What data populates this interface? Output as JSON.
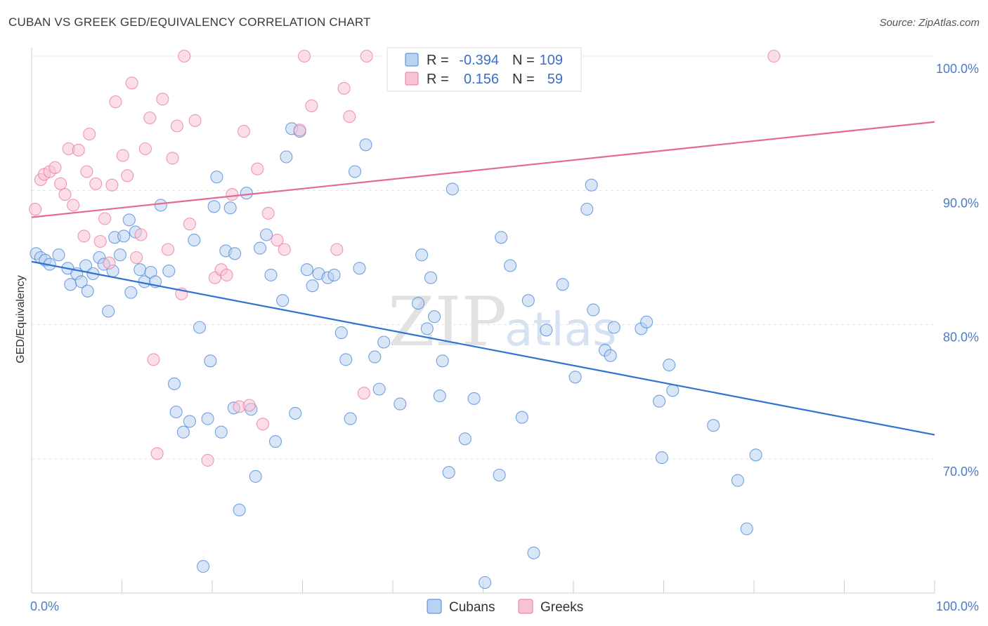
{
  "header": {
    "title": "CUBAN VS GREEK GED/EQUIVALENCY CORRELATION CHART",
    "source": "Source: ZipAtlas.com"
  },
  "watermark": {
    "zip": "ZIP",
    "atlas": "atlas"
  },
  "legend": {
    "r_label": "R =",
    "n_label": "N =",
    "rows": [
      {
        "series": "Cubans",
        "r": "-0.394",
        "n": "109",
        "color": "#4a86d6"
      },
      {
        "series": "Greeks",
        "r": "0.156",
        "n": "59",
        "color": "#e87aa0"
      }
    ]
  },
  "chart_data": {
    "type": "scatter",
    "title": "CUBAN VS GREEK GED/EQUIVALENCY CORRELATION CHART",
    "xlabel": "",
    "ylabel": "GED/Equivalency",
    "xlim": [
      0,
      100
    ],
    "ylim": [
      60,
      100
    ],
    "x_tick_labels": {
      "left": "0.0%",
      "right": "100.0%"
    },
    "y_ticks": [
      {
        "value": 100,
        "label": "100.0%"
      },
      {
        "value": 90,
        "label": "90.0%"
      },
      {
        "value": 80,
        "label": "80.0%"
      },
      {
        "value": 70,
        "label": "70.0%"
      }
    ],
    "grid": true,
    "legend_position": "top-center",
    "series": [
      {
        "name": "Cubans",
        "color": "#4a86d6",
        "fill": "#b9d2f2",
        "trend": {
          "x": [
            0,
            100
          ],
          "y": [
            84.7,
            71.8
          ]
        },
        "points": [
          [
            0.5,
            85.3
          ],
          [
            1,
            85
          ],
          [
            1.5,
            84.8
          ],
          [
            2,
            84.5
          ],
          [
            3,
            85.2
          ],
          [
            4,
            84.2
          ],
          [
            4.3,
            83
          ],
          [
            5,
            83.8
          ],
          [
            5.5,
            83.2
          ],
          [
            6,
            84.4
          ],
          [
            6.2,
            82.5
          ],
          [
            6.8,
            83.8
          ],
          [
            7.5,
            85
          ],
          [
            8,
            84.5
          ],
          [
            8.5,
            81
          ],
          [
            9,
            84
          ],
          [
            9.2,
            86.5
          ],
          [
            9.8,
            85.2
          ],
          [
            10.2,
            86.6
          ],
          [
            10.8,
            87.8
          ],
          [
            11,
            82.4
          ],
          [
            11.5,
            86.9
          ],
          [
            12,
            84.1
          ],
          [
            12.5,
            83.2
          ],
          [
            13.2,
            83.9
          ],
          [
            13.7,
            83.2
          ],
          [
            14.3,
            88.9
          ],
          [
            15.2,
            84
          ],
          [
            15.8,
            75.6
          ],
          [
            16.8,
            72
          ],
          [
            17.5,
            72.8
          ],
          [
            18,
            86.3
          ],
          [
            18.6,
            79.8
          ],
          [
            19,
            62
          ],
          [
            19.5,
            73
          ],
          [
            19.8,
            77.3
          ],
          [
            20.2,
            88.8
          ],
          [
            20.5,
            91
          ],
          [
            21,
            72
          ],
          [
            21.5,
            85.5
          ],
          [
            22,
            88.7
          ],
          [
            22.5,
            85.3
          ],
          [
            23,
            66.2
          ],
          [
            23.8,
            89.8
          ],
          [
            24.3,
            73.7
          ],
          [
            24.8,
            68.7
          ],
          [
            25.3,
            85.7
          ],
          [
            26,
            86.7
          ],
          [
            26.5,
            83.7
          ],
          [
            27,
            71.3
          ],
          [
            27.8,
            81.8
          ],
          [
            28.2,
            92.5
          ],
          [
            28.8,
            94.6
          ],
          [
            29.2,
            73.4
          ],
          [
            29.7,
            94.4
          ],
          [
            30.5,
            84.1
          ],
          [
            31.1,
            82.9
          ],
          [
            31.8,
            83.8
          ],
          [
            32.8,
            83.5
          ],
          [
            33.5,
            83.7
          ],
          [
            34.3,
            79.4
          ],
          [
            34.8,
            77.4
          ],
          [
            35.3,
            73
          ],
          [
            35.8,
            91.4
          ],
          [
            36.3,
            84.2
          ],
          [
            37,
            93.4
          ],
          [
            38,
            77.6
          ],
          [
            38.5,
            75.2
          ],
          [
            39,
            78.7
          ],
          [
            40.8,
            74.1
          ],
          [
            42.8,
            81.6
          ],
          [
            43.2,
            85.2
          ],
          [
            43.8,
            79.7
          ],
          [
            44.2,
            83.5
          ],
          [
            44.6,
            80.6
          ],
          [
            45.2,
            74.7
          ],
          [
            45.5,
            77.3
          ],
          [
            46.2,
            69
          ],
          [
            46.6,
            90.1
          ],
          [
            48,
            71.5
          ],
          [
            49,
            74.5
          ],
          [
            50.2,
            60.8
          ],
          [
            51.8,
            68.8
          ],
          [
            52,
            86.5
          ],
          [
            53,
            84.4
          ],
          [
            54.3,
            73.1
          ],
          [
            55,
            81.8
          ],
          [
            55.6,
            63
          ],
          [
            57,
            79.6
          ],
          [
            58.8,
            83
          ],
          [
            60.2,
            76.1
          ],
          [
            61.5,
            88.6
          ],
          [
            62,
            90.4
          ],
          [
            62.2,
            81.1
          ],
          [
            63.5,
            78.1
          ],
          [
            64.1,
            77.7
          ],
          [
            64.5,
            79.8
          ],
          [
            67.5,
            79.7
          ],
          [
            68.1,
            80.2
          ],
          [
            69.5,
            74.3
          ],
          [
            69.8,
            70.1
          ],
          [
            70.6,
            77
          ],
          [
            71,
            75.1
          ],
          [
            75.5,
            72.5
          ],
          [
            78.2,
            68.4
          ],
          [
            79.2,
            64.8
          ],
          [
            80.2,
            70.3
          ],
          [
            22.4,
            73.8
          ],
          [
            16,
            73.5
          ]
        ]
      },
      {
        "name": "Greeks",
        "color": "#e87aa0",
        "fill": "#f7c3d3",
        "trend": {
          "x": [
            0,
            100
          ],
          "y": [
            88
          ],
          "y_end": 95.1
        },
        "points": [
          [
            0.4,
            88.6
          ],
          [
            1,
            90.8
          ],
          [
            1.4,
            91.2
          ],
          [
            2,
            91.4
          ],
          [
            2.6,
            91.7
          ],
          [
            3.2,
            90.5
          ],
          [
            3.7,
            89.7
          ],
          [
            4.1,
            93.1
          ],
          [
            4.6,
            88.9
          ],
          [
            5.2,
            93
          ],
          [
            5.8,
            86.6
          ],
          [
            6.1,
            91.4
          ],
          [
            6.4,
            94.2
          ],
          [
            7.1,
            90.5
          ],
          [
            7.6,
            86.2
          ],
          [
            8.1,
            87.9
          ],
          [
            8.6,
            84.6
          ],
          [
            8.9,
            90.4
          ],
          [
            9.3,
            96.6
          ],
          [
            10.1,
            92.6
          ],
          [
            10.6,
            91.1
          ],
          [
            11.1,
            98
          ],
          [
            11.6,
            85
          ],
          [
            12.1,
            86.7
          ],
          [
            12.6,
            93.1
          ],
          [
            13.1,
            95.4
          ],
          [
            13.5,
            77.4
          ],
          [
            13.9,
            70.4
          ],
          [
            14.5,
            96.8
          ],
          [
            15.1,
            85.6
          ],
          [
            15.6,
            92.4
          ],
          [
            16.1,
            94.8
          ],
          [
            16.6,
            82.3
          ],
          [
            16.9,
            100
          ],
          [
            17.5,
            87.5
          ],
          [
            18.1,
            95.2
          ],
          [
            19.5,
            69.9
          ],
          [
            20.3,
            83.5
          ],
          [
            21,
            84.1
          ],
          [
            21.6,
            83.7
          ],
          [
            22.2,
            89.7
          ],
          [
            23,
            73.9
          ],
          [
            23.5,
            94.4
          ],
          [
            24.1,
            74
          ],
          [
            25,
            91.6
          ],
          [
            25.6,
            72.6
          ],
          [
            26.2,
            88.3
          ],
          [
            27.2,
            86.3
          ],
          [
            28,
            85.6
          ],
          [
            29.7,
            94.5
          ],
          [
            30.2,
            100
          ],
          [
            31,
            96.3
          ],
          [
            33.8,
            85.6
          ],
          [
            34.6,
            97.6
          ],
          [
            35.2,
            95.5
          ],
          [
            36.8,
            74.9
          ],
          [
            37.1,
            100
          ],
          [
            48.5,
            100
          ],
          [
            82.2,
            100
          ]
        ]
      }
    ]
  },
  "bottom_legend": [
    {
      "label": "Cubans"
    },
    {
      "label": "Greeks"
    }
  ]
}
